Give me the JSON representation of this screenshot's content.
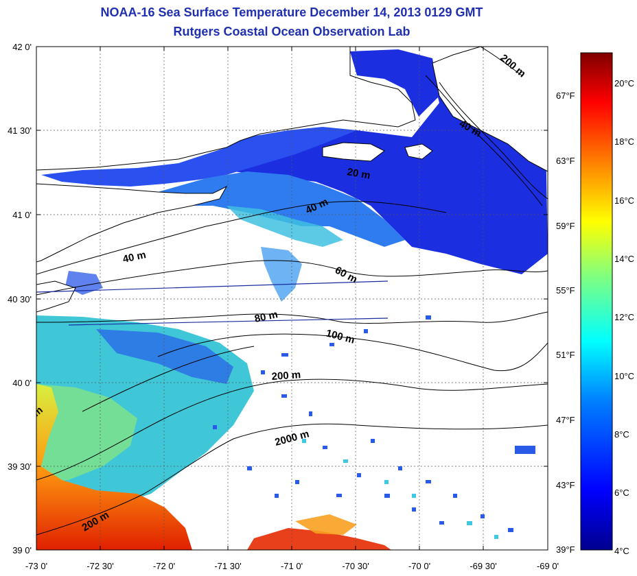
{
  "header": {
    "title": "NOAA-16 Sea Surface Temperature December 14, 2013 0129 GMT",
    "subtitle": "Rutgers Coastal Ocean Observation Lab"
  },
  "axes": {
    "lon_labels": [
      "-73 0'",
      "-72 30'",
      "-72 0'",
      "-71 30'",
      "-71 0'",
      "-70 30'",
      "-70 0'",
      "-69 30'",
      "-69 0'"
    ],
    "lat_labels": [
      "42 0'",
      "41 30'",
      "41 0'",
      "40 30'",
      "40 0'",
      "39 30'",
      "39 0'"
    ],
    "lon_range": [
      -73,
      -69
    ],
    "lat_range": [
      39,
      42
    ]
  },
  "isobaths": [
    "20 m",
    "40 m",
    "40 m",
    "40 m",
    "60 m",
    "80 m",
    "100 m",
    "200 m",
    "200 m",
    "200 m",
    "2000 m",
    "m"
  ],
  "colorbar": {
    "celsius_labels": [
      "20°C",
      "18°C",
      "16°C",
      "14°C",
      "12°C",
      "10°C",
      "8°C",
      "6°C",
      "4°C"
    ],
    "fahrenheit_labels": [
      "67°F",
      "63°F",
      "59°F",
      "55°F",
      "51°F",
      "47°F",
      "43°F",
      "39°F"
    ],
    "range_c": [
      4,
      21
    ],
    "colors": [
      "#00008f",
      "#0000ff",
      "#0080ff",
      "#00ffff",
      "#80ff80",
      "#ffff00",
      "#ff8000",
      "#ff0000",
      "#800000"
    ]
  },
  "colors": {
    "title": "#1f2fb0",
    "coast": "#000000",
    "grid": "#333333",
    "track": "#1a2ca0"
  }
}
